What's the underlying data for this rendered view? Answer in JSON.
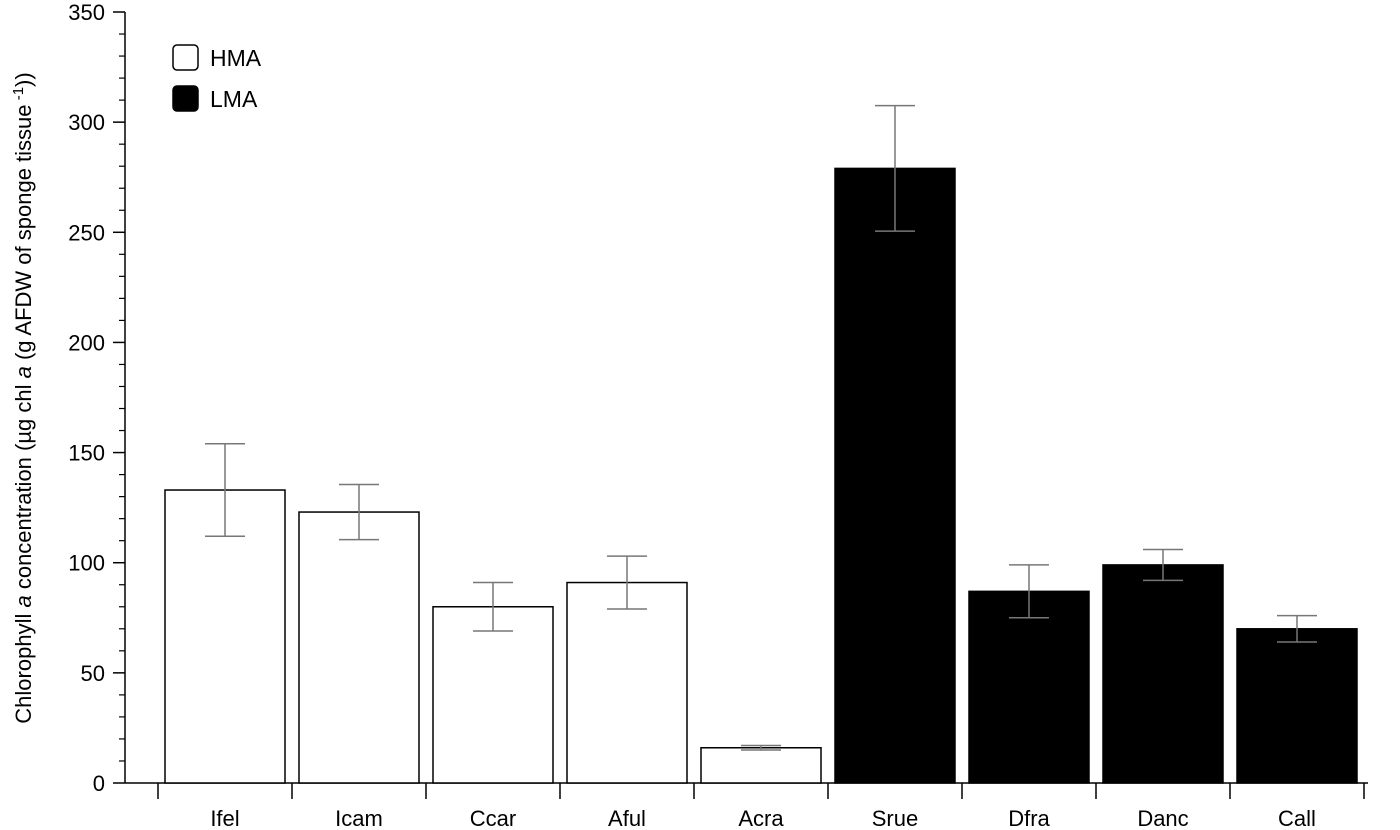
{
  "chart_data": {
    "type": "bar",
    "ylabel_parts": {
      "pre": "Chlorophyll ",
      "italic_a": "a",
      "mid": " concentration (µg chl ",
      "italic_a2": "a",
      "post": " (g AFDW of sponge tissue",
      "sup": " -1",
      "end": "))"
    },
    "xlabel": "",
    "ylim": [
      0,
      350
    ],
    "yticks_major": [
      0,
      50,
      100,
      150,
      200,
      250,
      300,
      350
    ],
    "yticks_minor_step": 10,
    "categories": [
      "Ifel",
      "Icam",
      "Ccar",
      "Aful",
      "Acra",
      "Srue",
      "Dfra",
      "Danc",
      "Call"
    ],
    "values": [
      133,
      123,
      80,
      91,
      16,
      279,
      87,
      99,
      70
    ],
    "errors": [
      21,
      12.5,
      11,
      12,
      1,
      28.5,
      12,
      7,
      6
    ],
    "groups": [
      "HMA",
      "HMA",
      "HMA",
      "HMA",
      "HMA",
      "LMA",
      "LMA",
      "LMA",
      "LMA"
    ],
    "legend": {
      "position": "top-left",
      "entries": [
        {
          "name": "HMA",
          "fill": "#ffffff"
        },
        {
          "name": "LMA",
          "fill": "#000000"
        }
      ]
    },
    "colors": {
      "HMA": "#ffffff",
      "LMA": "#000000",
      "error_bar": "#777777",
      "axis": "#000000"
    },
    "grid": false
  }
}
